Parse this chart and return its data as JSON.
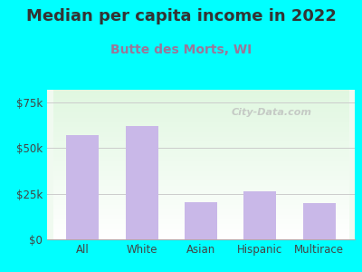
{
  "title": "Median per capita income in 2022",
  "subtitle": "Butte des Morts, WI",
  "categories": [
    "All",
    "White",
    "Asian",
    "Hispanic",
    "Multirace"
  ],
  "values": [
    57000,
    62000,
    20500,
    26500,
    20000
  ],
  "bar_color": "#c9b8e8",
  "bg_outer": "#00ffff",
  "bg_inner_top": "#f0faf0",
  "bg_inner_bottom": "#ffffff",
  "title_fontsize": 13,
  "subtitle_fontsize": 10,
  "title_color": "#333333",
  "subtitle_color": "#997799",
  "ytick_labels": [
    "$0",
    "$25k",
    "$50k",
    "$75k"
  ],
  "ytick_values": [
    0,
    25000,
    50000,
    75000
  ],
  "ylim": [
    0,
    82000
  ],
  "watermark": "City-Data.com"
}
